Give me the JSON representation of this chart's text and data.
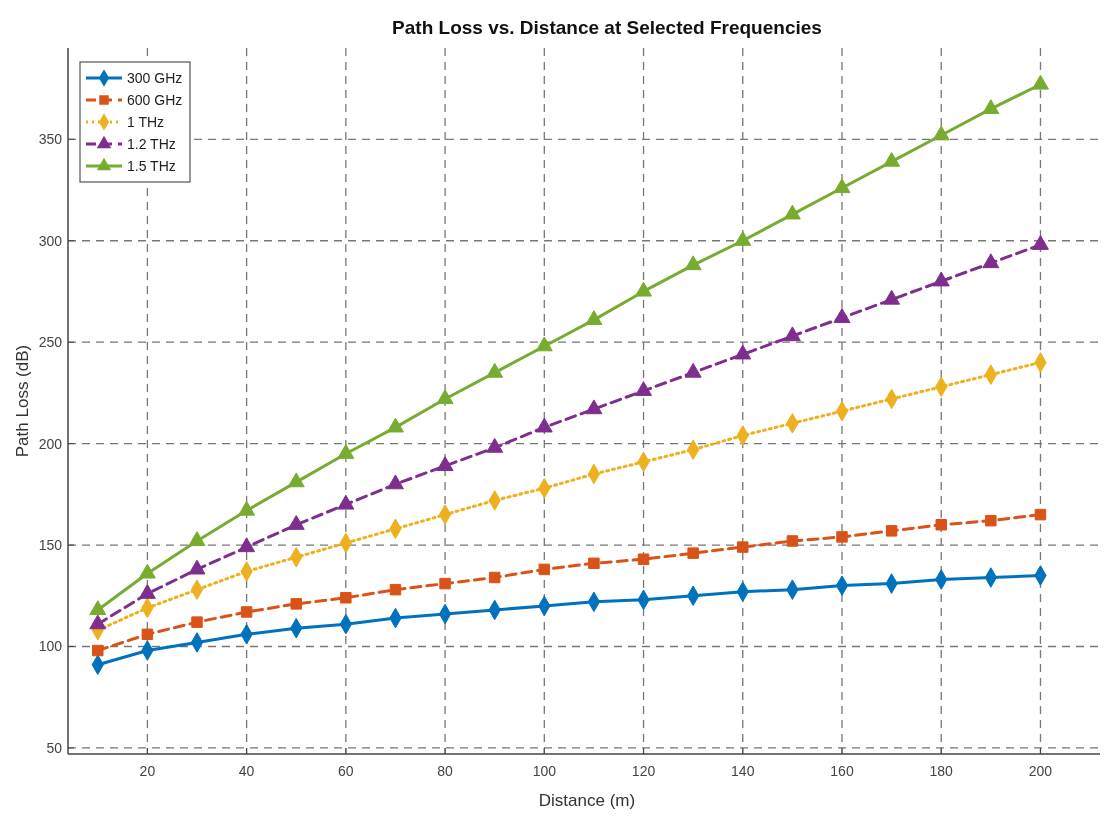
{
  "chart_data": {
    "type": "line",
    "title": "Path Loss vs. Distance at Selected Frequencies",
    "xlabel": "Distance (m)",
    "ylabel": "Path Loss (dB)",
    "x": [
      10,
      20,
      30,
      40,
      50,
      60,
      70,
      80,
      90,
      100,
      110,
      120,
      130,
      140,
      150,
      160,
      170,
      180,
      190,
      200
    ],
    "xlim": [
      4,
      212
    ],
    "xticks": [
      20,
      40,
      60,
      80,
      100,
      120,
      140,
      160,
      180,
      200
    ],
    "ylim": [
      47,
      395
    ],
    "yticks": [
      50,
      100,
      150,
      200,
      250,
      300,
      350
    ],
    "grid": true,
    "legend": "top left",
    "series": [
      {
        "name": "300 GHz",
        "color": "#0072bd",
        "marker": "diamond",
        "line_style": "solid",
        "values": [
          91,
          98,
          102,
          106,
          109,
          111,
          114,
          116,
          118,
          120,
          122,
          123,
          125,
          127,
          128,
          130,
          131,
          133,
          134,
          135
        ]
      },
      {
        "name": "600 GHz",
        "color": "#d95319",
        "marker": "square",
        "line_style": "dashed",
        "values": [
          98,
          106,
          112,
          117,
          121,
          124,
          128,
          131,
          134,
          138,
          141,
          143,
          146,
          149,
          152,
          154,
          157,
          160,
          162,
          165
        ]
      },
      {
        "name": "1 THz",
        "color": "#edb120",
        "marker": "diamond",
        "line_style": "dotted",
        "values": [
          108,
          119,
          128,
          137,
          144,
          151,
          158,
          165,
          172,
          178,
          185,
          191,
          197,
          204,
          210,
          216,
          222,
          228,
          234,
          240
        ]
      },
      {
        "name": "1.2 THz",
        "color": "#7e2f8e",
        "marker": "triangle",
        "line_style": "dashed",
        "values": [
          111,
          126,
          138,
          149,
          160,
          170,
          180,
          189,
          198,
          208,
          217,
          226,
          235,
          244,
          253,
          262,
          271,
          280,
          289,
          298
        ]
      },
      {
        "name": "1.5 THz",
        "color": "#77ac30",
        "marker": "triangle",
        "line_style": "solid",
        "values": [
          118,
          136,
          152,
          167,
          181,
          195,
          208,
          222,
          235,
          248,
          261,
          275,
          288,
          300,
          313,
          326,
          339,
          352,
          365,
          377
        ]
      }
    ]
  }
}
